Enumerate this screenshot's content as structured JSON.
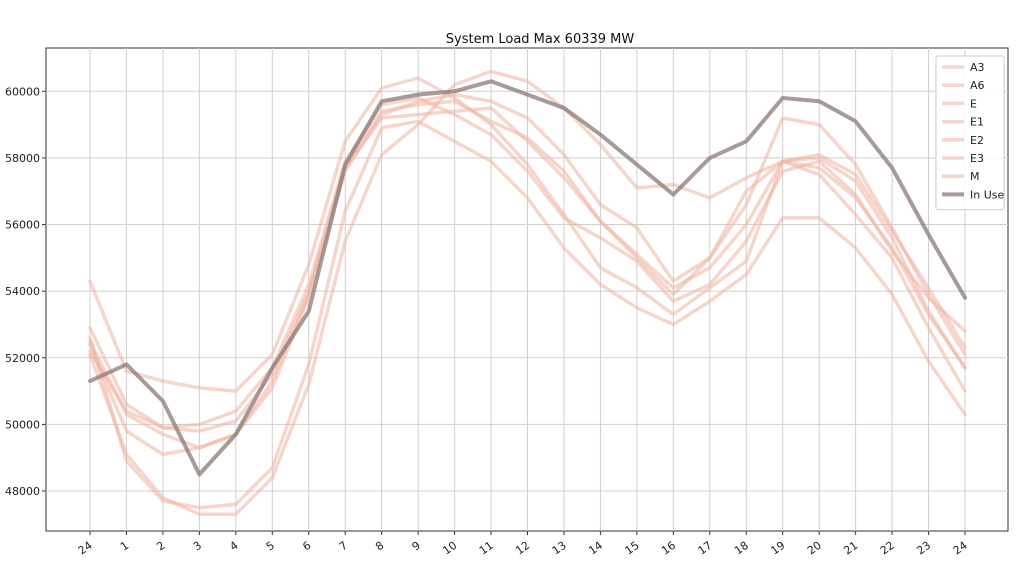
{
  "chart_data": {
    "type": "line",
    "title": "System Load Max 60339 MW",
    "xlabel": "",
    "ylabel": "",
    "categories": [
      "24",
      "1",
      "2",
      "3",
      "4",
      "5",
      "6",
      "7",
      "8",
      "9",
      "10",
      "11",
      "12",
      "13",
      "14",
      "15",
      "16",
      "17",
      "18",
      "19",
      "20",
      "21",
      "22",
      "23",
      "24"
    ],
    "ylim": [
      46800,
      61300
    ],
    "yticks": [
      48000,
      50000,
      52000,
      54000,
      56000,
      58000,
      60000
    ],
    "grid": true,
    "legend_position": "top-right",
    "colors": {
      "forecast": "#eeb4a3",
      "in_use": "#8a7a76"
    },
    "series": [
      {
        "name": "A3",
        "values": [
          54300,
          51600,
          51300,
          51100,
          51000,
          52100,
          54800,
          58500,
          60100,
          60400,
          59800,
          59000,
          57800,
          56300,
          54700,
          54100,
          53300,
          54100,
          54900,
          57900,
          58100,
          57500,
          55800,
          54100,
          52300
        ]
      },
      {
        "name": "A6",
        "values": [
          52900,
          50600,
          49900,
          49800,
          50100,
          51500,
          54000,
          57800,
          59400,
          59600,
          59700,
          59100,
          58600,
          57600,
          56100,
          55100,
          54100,
          54700,
          56000,
          57900,
          57500,
          56300,
          55000,
          52900,
          51000
        ]
      },
      {
        "name": "E",
        "values": [
          52500,
          50300,
          49700,
          49300,
          49700,
          51100,
          53800,
          57600,
          59300,
          59700,
          59900,
          59700,
          59200,
          58100,
          56600,
          55900,
          54300,
          55000,
          56600,
          59200,
          59000,
          57800,
          55900,
          53900,
          52100
        ]
      },
      {
        "name": "E1",
        "values": [
          52400,
          49800,
          49100,
          49300,
          49700,
          51300,
          53900,
          57700,
          59200,
          59300,
          59400,
          59500,
          58500,
          57400,
          56100,
          55000,
          53900,
          55000,
          57000,
          57900,
          57700,
          56800,
          55300,
          53300,
          51700
        ]
      },
      {
        "name": "E2",
        "values": [
          52100,
          49100,
          47800,
          47300,
          47300,
          48400,
          51200,
          55500,
          58100,
          59000,
          60200,
          60600,
          60300,
          59500,
          58400,
          57100,
          57200,
          56800,
          57400,
          57900,
          58000,
          57300,
          55600,
          53400,
          51700
        ]
      },
      {
        "name": "E3",
        "values": [
          52600,
          48900,
          47700,
          47500,
          47600,
          48700,
          51800,
          56400,
          58900,
          59100,
          58500,
          57900,
          56800,
          55300,
          54200,
          53500,
          53000,
          53700,
          54500,
          56200,
          56200,
          55300,
          53900,
          51900,
          50300
        ]
      },
      {
        "name": "M",
        "values": [
          52200,
          50400,
          49900,
          50000,
          50400,
          51700,
          54200,
          57900,
          59600,
          59800,
          59300,
          58700,
          57600,
          56200,
          55600,
          54900,
          53700,
          54200,
          55500,
          57600,
          57900,
          56900,
          55200,
          53800,
          52800
        ]
      },
      {
        "name": "In Use",
        "values": [
          51300,
          51800,
          50700,
          48500,
          49700,
          51700,
          53400,
          57800,
          59700,
          59900,
          60000,
          60300,
          59900,
          59500,
          58700,
          57800,
          56900,
          58000,
          58500,
          59800,
          59700,
          59100,
          57700,
          55700,
          53800
        ]
      }
    ]
  }
}
